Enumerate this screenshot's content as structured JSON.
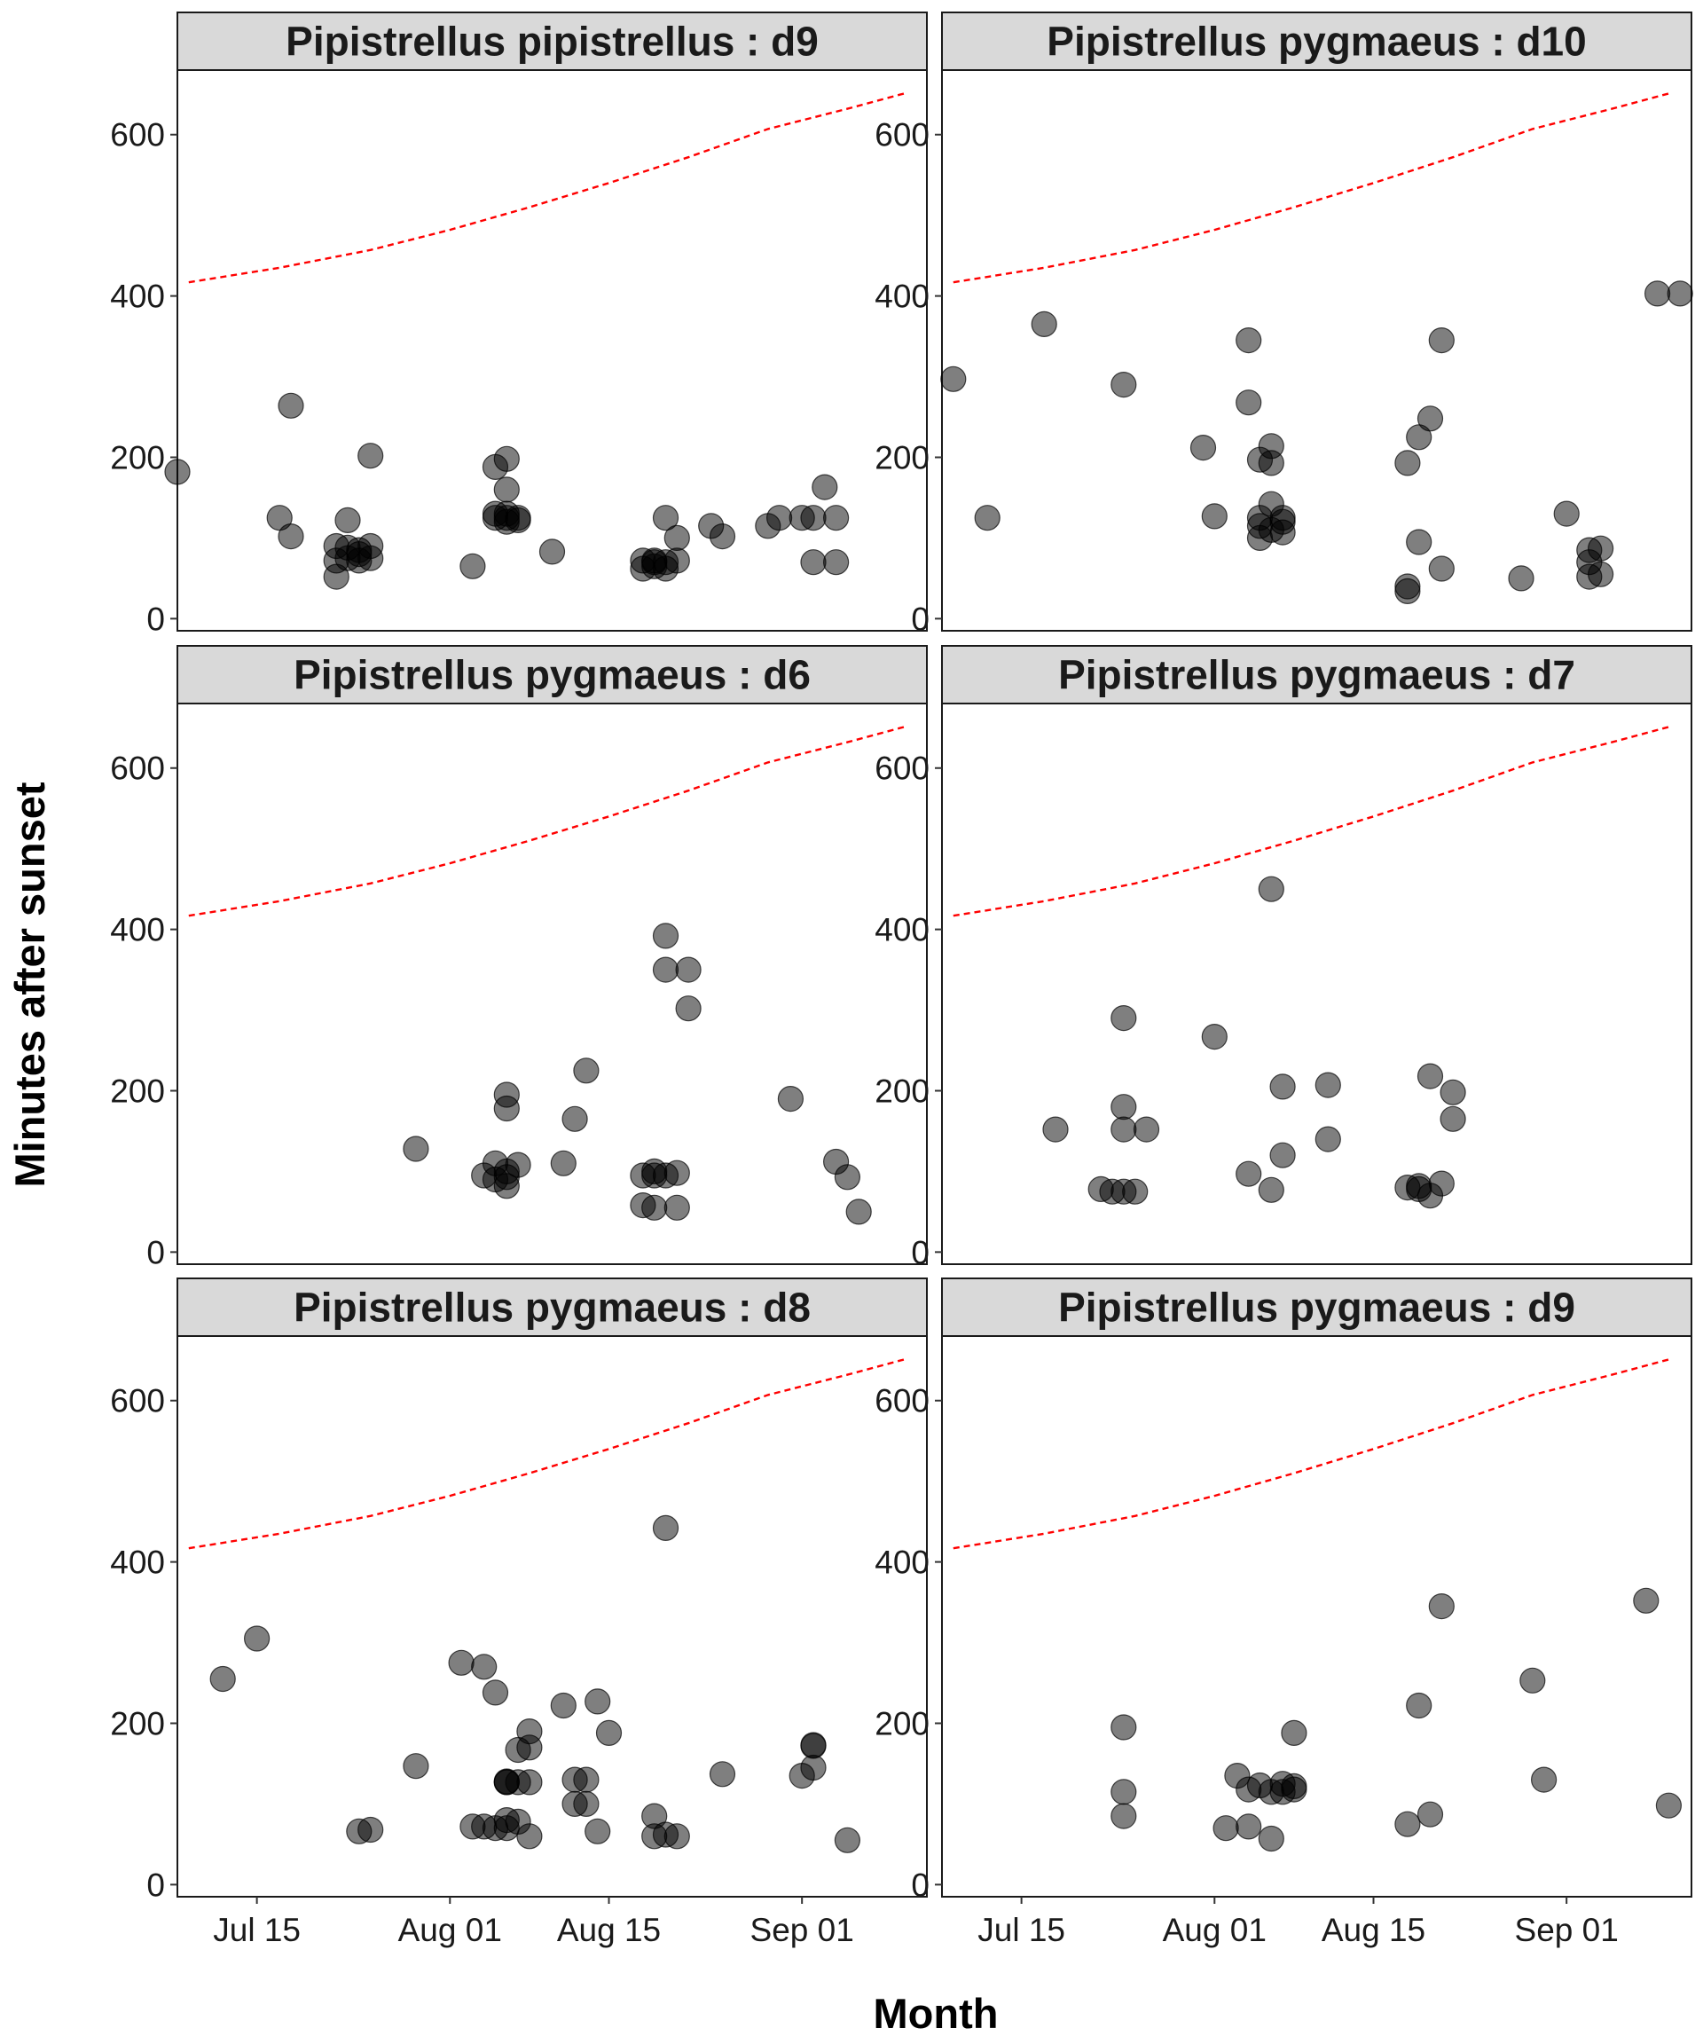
{
  "chart_data": {
    "type": "scatter",
    "xlabel": "Month",
    "ylabel": "Minutes after sunset",
    "x_tick_labels": [
      "Jul 15",
      "Aug 01",
      "Aug 15",
      "Sep 01"
    ],
    "x_tick_values": [
      "2021-07-15",
      "2021-08-01",
      "2021-08-15",
      "2021-09-01"
    ],
    "xlim": [
      "2021-07-08",
      "2021-09-12"
    ],
    "y_tick_labels": [
      "0",
      "200",
      "400",
      "600"
    ],
    "y_tick_values": [
      0,
      200,
      400,
      600
    ],
    "ylim": [
      -15,
      680
    ],
    "point_color": "#000000",
    "point_opacity": 0.5,
    "threshold_line": {
      "style": "dashed",
      "color": "#ff0000",
      "points": [
        [
          "2021-07-09",
          417
        ],
        [
          "2021-07-17",
          435
        ],
        [
          "2021-07-25",
          457
        ],
        [
          "2021-08-01",
          482
        ],
        [
          "2021-08-08",
          510
        ],
        [
          "2021-08-15",
          540
        ],
        [
          "2021-08-22",
          572
        ],
        [
          "2021-08-29",
          607
        ],
        [
          "2021-09-05",
          632
        ],
        [
          "2021-09-10",
          651
        ]
      ]
    },
    "grid": false,
    "panels": [
      {
        "title": "Pipistrellus pipistrellus : d9",
        "points": [
          [
            "2021-07-08",
            182
          ],
          [
            "2021-07-17",
            125
          ],
          [
            "2021-07-18",
            102
          ],
          [
            "2021-07-18",
            264
          ],
          [
            "2021-07-22",
            52
          ],
          [
            "2021-07-22",
            72
          ],
          [
            "2021-07-22",
            90
          ],
          [
            "2021-07-23",
            122
          ],
          [
            "2021-07-23",
            75
          ],
          [
            "2021-07-23",
            88
          ],
          [
            "2021-07-24",
            72
          ],
          [
            "2021-07-24",
            85
          ],
          [
            "2021-07-24",
            80
          ],
          [
            "2021-07-25",
            90
          ],
          [
            "2021-07-25",
            75
          ],
          [
            "2021-07-25",
            202
          ],
          [
            "2021-08-03",
            65
          ],
          [
            "2021-08-05",
            188
          ],
          [
            "2021-08-05",
            125
          ],
          [
            "2021-08-05",
            130
          ],
          [
            "2021-08-06",
            198
          ],
          [
            "2021-08-06",
            125
          ],
          [
            "2021-08-06",
            120
          ],
          [
            "2021-08-06",
            130
          ],
          [
            "2021-08-06",
            160
          ],
          [
            "2021-08-07",
            125
          ],
          [
            "2021-08-07",
            122
          ],
          [
            "2021-08-10",
            83
          ],
          [
            "2021-08-18",
            62
          ],
          [
            "2021-08-18",
            72
          ],
          [
            "2021-08-19",
            65
          ],
          [
            "2021-08-19",
            70
          ],
          [
            "2021-08-19",
            72
          ],
          [
            "2021-08-20",
            70
          ],
          [
            "2021-08-20",
            125
          ],
          [
            "2021-08-20",
            62
          ],
          [
            "2021-08-21",
            100
          ],
          [
            "2021-08-21",
            72
          ],
          [
            "2021-08-24",
            115
          ],
          [
            "2021-08-25",
            102
          ],
          [
            "2021-08-29",
            115
          ],
          [
            "2021-08-30",
            125
          ],
          [
            "2021-09-01",
            125
          ],
          [
            "2021-09-02",
            125
          ],
          [
            "2021-09-02",
            70
          ],
          [
            "2021-09-03",
            163
          ],
          [
            "2021-09-04",
            125
          ],
          [
            "2021-09-04",
            70
          ]
        ]
      },
      {
        "title": "Pipistrellus pygmaeus : d10",
        "points": [
          [
            "2021-07-09",
            297
          ],
          [
            "2021-07-12",
            125
          ],
          [
            "2021-07-17",
            365
          ],
          [
            "2021-07-24",
            290
          ],
          [
            "2021-07-31",
            212
          ],
          [
            "2021-08-01",
            127
          ],
          [
            "2021-08-04",
            345
          ],
          [
            "2021-08-04",
            268
          ],
          [
            "2021-08-05",
            197
          ],
          [
            "2021-08-05",
            125
          ],
          [
            "2021-08-05",
            100
          ],
          [
            "2021-08-05",
            115
          ],
          [
            "2021-08-06",
            214
          ],
          [
            "2021-08-06",
            142
          ],
          [
            "2021-08-06",
            193
          ],
          [
            "2021-08-06",
            110
          ],
          [
            "2021-08-07",
            125
          ],
          [
            "2021-08-07",
            107
          ],
          [
            "2021-08-07",
            120
          ],
          [
            "2021-08-18",
            193
          ],
          [
            "2021-08-18",
            40
          ],
          [
            "2021-08-18",
            34
          ],
          [
            "2021-08-19",
            95
          ],
          [
            "2021-08-19",
            225
          ],
          [
            "2021-08-20",
            248
          ],
          [
            "2021-08-21",
            345
          ],
          [
            "2021-08-21",
            62
          ],
          [
            "2021-08-28",
            50
          ],
          [
            "2021-09-01",
            130
          ],
          [
            "2021-09-03",
            52
          ],
          [
            "2021-09-03",
            70
          ],
          [
            "2021-09-03",
            85
          ],
          [
            "2021-09-04",
            87
          ],
          [
            "2021-09-04",
            55
          ],
          [
            "2021-09-09",
            403
          ],
          [
            "2021-09-11",
            403
          ]
        ]
      },
      {
        "title": "Pipistrellus pygmaeus : d6",
        "points": [
          [
            "2021-07-29",
            128
          ],
          [
            "2021-08-04",
            95
          ],
          [
            "2021-08-05",
            110
          ],
          [
            "2021-08-05",
            90
          ],
          [
            "2021-08-06",
            195
          ],
          [
            "2021-08-06",
            178
          ],
          [
            "2021-08-06",
            100
          ],
          [
            "2021-08-06",
            82
          ],
          [
            "2021-08-06",
            93
          ],
          [
            "2021-08-07",
            108
          ],
          [
            "2021-08-11",
            110
          ],
          [
            "2021-08-12",
            165
          ],
          [
            "2021-08-13",
            225
          ],
          [
            "2021-08-18",
            95
          ],
          [
            "2021-08-18",
            58
          ],
          [
            "2021-08-19",
            55
          ],
          [
            "2021-08-19",
            100
          ],
          [
            "2021-08-19",
            95
          ],
          [
            "2021-08-20",
            392
          ],
          [
            "2021-08-20",
            350
          ],
          [
            "2021-08-20",
            95
          ],
          [
            "2021-08-21",
            55
          ],
          [
            "2021-08-21",
            98
          ],
          [
            "2021-08-22",
            350
          ],
          [
            "2021-08-22",
            302
          ],
          [
            "2021-08-31",
            190
          ],
          [
            "2021-09-04",
            112
          ],
          [
            "2021-09-05",
            93
          ],
          [
            "2021-09-06",
            50
          ]
        ]
      },
      {
        "title": "Pipistrellus pygmaeus : d7",
        "points": [
          [
            "2021-07-18",
            152
          ],
          [
            "2021-07-22",
            78
          ],
          [
            "2021-07-23",
            75
          ],
          [
            "2021-07-24",
            75
          ],
          [
            "2021-07-24",
            290
          ],
          [
            "2021-07-24",
            180
          ],
          [
            "2021-07-24",
            152
          ],
          [
            "2021-07-25",
            75
          ],
          [
            "2021-07-26",
            152
          ],
          [
            "2021-08-01",
            267
          ],
          [
            "2021-08-04",
            97
          ],
          [
            "2021-08-06",
            450
          ],
          [
            "2021-08-06",
            77
          ],
          [
            "2021-08-07",
            120
          ],
          [
            "2021-08-07",
            205
          ],
          [
            "2021-08-11",
            207
          ],
          [
            "2021-08-11",
            140
          ],
          [
            "2021-08-18",
            80
          ],
          [
            "2021-08-19",
            78
          ],
          [
            "2021-08-19",
            82
          ],
          [
            "2021-08-20",
            218
          ],
          [
            "2021-08-20",
            70
          ],
          [
            "2021-08-21",
            85
          ],
          [
            "2021-08-22",
            198
          ],
          [
            "2021-08-22",
            165
          ]
        ]
      },
      {
        "title": "Pipistrellus pygmaeus : d8",
        "points": [
          [
            "2021-07-12",
            255
          ],
          [
            "2021-07-15",
            305
          ],
          [
            "2021-07-24",
            66
          ],
          [
            "2021-07-25",
            68
          ],
          [
            "2021-07-29",
            147
          ],
          [
            "2021-08-02",
            275
          ],
          [
            "2021-08-03",
            72
          ],
          [
            "2021-08-04",
            72
          ],
          [
            "2021-08-04",
            270
          ],
          [
            "2021-08-05",
            238
          ],
          [
            "2021-08-05",
            70
          ],
          [
            "2021-08-06",
            80
          ],
          [
            "2021-08-06",
            127
          ],
          [
            "2021-08-06",
            128
          ],
          [
            "2021-08-06",
            127
          ],
          [
            "2021-08-06",
            70
          ],
          [
            "2021-08-07",
            167
          ],
          [
            "2021-08-07",
            78
          ],
          [
            "2021-08-07",
            127
          ],
          [
            "2021-08-08",
            190
          ],
          [
            "2021-08-08",
            127
          ],
          [
            "2021-08-08",
            60
          ],
          [
            "2021-08-08",
            170
          ],
          [
            "2021-08-11",
            222
          ],
          [
            "2021-08-12",
            130
          ],
          [
            "2021-08-12",
            100
          ],
          [
            "2021-08-13",
            100
          ],
          [
            "2021-08-13",
            130
          ],
          [
            "2021-08-14",
            66
          ],
          [
            "2021-08-14",
            227
          ],
          [
            "2021-08-15",
            188
          ],
          [
            "2021-08-19",
            60
          ],
          [
            "2021-08-19",
            85
          ],
          [
            "2021-08-20",
            62
          ],
          [
            "2021-08-20",
            442
          ],
          [
            "2021-08-21",
            60
          ],
          [
            "2021-08-25",
            137
          ],
          [
            "2021-09-01",
            135
          ],
          [
            "2021-09-02",
            172
          ],
          [
            "2021-09-02",
            145
          ],
          [
            "2021-09-02",
            173
          ],
          [
            "2021-09-05",
            55
          ]
        ]
      },
      {
        "title": "Pipistrellus pygmaeus : d9",
        "points": [
          [
            "2021-07-24",
            195
          ],
          [
            "2021-07-24",
            115
          ],
          [
            "2021-07-24",
            85
          ],
          [
            "2021-08-02",
            70
          ],
          [
            "2021-08-03",
            135
          ],
          [
            "2021-08-04",
            72
          ],
          [
            "2021-08-04",
            118
          ],
          [
            "2021-08-05",
            123
          ],
          [
            "2021-08-06",
            57
          ],
          [
            "2021-08-06",
            115
          ],
          [
            "2021-08-07",
            125
          ],
          [
            "2021-08-07",
            115
          ],
          [
            "2021-08-08",
            122
          ],
          [
            "2021-08-08",
            188
          ],
          [
            "2021-08-08",
            118
          ],
          [
            "2021-08-18",
            75
          ],
          [
            "2021-08-19",
            222
          ],
          [
            "2021-08-20",
            87
          ],
          [
            "2021-08-21",
            345
          ],
          [
            "2021-08-29",
            253
          ],
          [
            "2021-08-30",
            130
          ],
          [
            "2021-09-08",
            352
          ],
          [
            "2021-09-10",
            98
          ]
        ]
      }
    ]
  }
}
